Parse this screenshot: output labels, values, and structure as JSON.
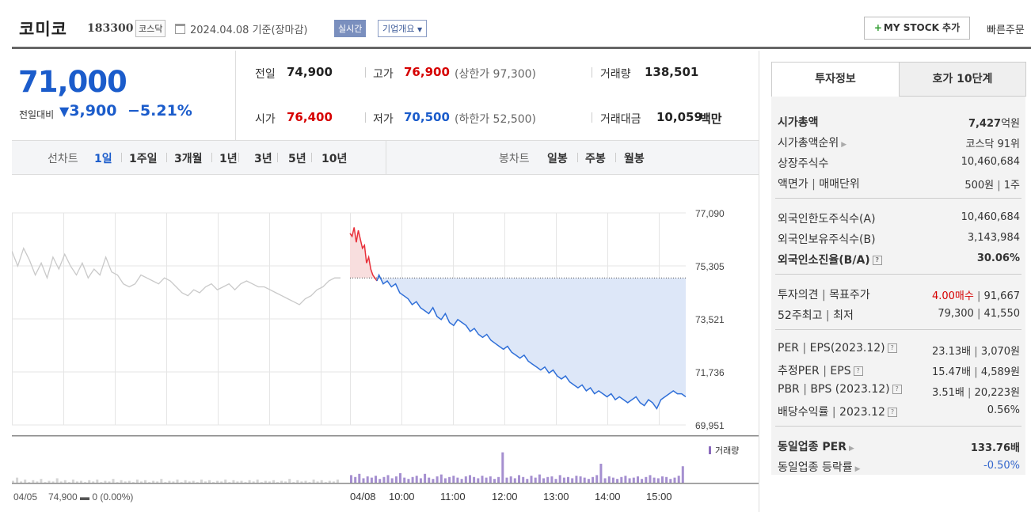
{
  "header": {
    "stock_name": "코미코",
    "stock_code": "183300",
    "market_badge": "코스닥",
    "date_text": "2024.04.08 기준(장마감)",
    "realtime_badge": "실시간",
    "overview_dropdown": "기업개요",
    "mystock_button": "MY STOCK 추가",
    "quick_order": "빠른주문"
  },
  "price": {
    "current": "71,000",
    "change_label": "전일대비",
    "change_value": "3,900",
    "change_pct": "−5.21%",
    "direction": "down"
  },
  "stats": {
    "prev_close_label": "전일",
    "prev_close": "74,900",
    "high_label": "고가",
    "high": "76,900",
    "upper_limit": "(상한가 97,300)",
    "volume_label": "거래량",
    "volume": "138,501",
    "open_label": "시가",
    "open": "76,400",
    "low_label": "저가",
    "low": "70,500",
    "lower_limit": "(하한가 52,500)",
    "amount_label": "거래대금",
    "amount": "10,059",
    "amount_unit": "백만"
  },
  "chart_nav": {
    "line_chart_label": "선차트",
    "periods": [
      "1일",
      "1주일",
      "3개월",
      "1년",
      "3년",
      "5년",
      "10년"
    ],
    "selected_period": "1일",
    "candle_chart_label": "봉차트",
    "candle_periods": [
      "일봉",
      "주봉",
      "월봉"
    ]
  },
  "chart_data": {
    "type": "line",
    "y_ticks": [
      "77,090",
      "75,305",
      "73,521",
      "71,736",
      "69,951"
    ],
    "ylim": [
      69951,
      77090
    ],
    "reference_price": 74900,
    "x_ticks": [
      "04/08",
      "10:00",
      "11:00",
      "12:00",
      "13:00",
      "14:00",
      "15:00"
    ],
    "prev_day_label": "04/05",
    "prev_day_summary": "74,900 ▬ 0 (0.00%)",
    "volume_legend": "거래량",
    "prev_day_series": [
      [
        0,
        75800
      ],
      [
        2,
        75300
      ],
      [
        4,
        75900
      ],
      [
        6,
        75500
      ],
      [
        8,
        75000
      ],
      [
        10,
        75400
      ],
      [
        12,
        74900
      ],
      [
        14,
        75600
      ],
      [
        16,
        75200
      ],
      [
        18,
        75700
      ],
      [
        20,
        75300
      ],
      [
        22,
        75000
      ],
      [
        24,
        75400
      ],
      [
        26,
        74900
      ],
      [
        28,
        75200
      ],
      [
        30,
        75000
      ],
      [
        32,
        75600
      ],
      [
        34,
        75100
      ],
      [
        36,
        75000
      ],
      [
        38,
        74700
      ],
      [
        40,
        74600
      ],
      [
        42,
        74700
      ],
      [
        44,
        75000
      ],
      [
        46,
        74900
      ],
      [
        48,
        74800
      ],
      [
        50,
        74700
      ],
      [
        52,
        74900
      ],
      [
        54,
        74800
      ],
      [
        56,
        74600
      ],
      [
        58,
        74400
      ],
      [
        60,
        74300
      ],
      [
        62,
        74500
      ],
      [
        64,
        74400
      ],
      [
        66,
        74600
      ],
      [
        68,
        74700
      ],
      [
        70,
        74500
      ],
      [
        72,
        74600
      ],
      [
        74,
        74700
      ],
      [
        76,
        74500
      ],
      [
        78,
        74700
      ],
      [
        80,
        74800
      ],
      [
        82,
        74700
      ],
      [
        84,
        74600
      ],
      [
        86,
        74600
      ],
      [
        88,
        74500
      ],
      [
        90,
        74400
      ],
      [
        92,
        74300
      ],
      [
        94,
        74200
      ],
      [
        96,
        74100
      ],
      [
        98,
        74000
      ],
      [
        100,
        74200
      ],
      [
        102,
        74300
      ],
      [
        104,
        74500
      ],
      [
        106,
        74600
      ],
      [
        108,
        74800
      ],
      [
        110,
        74900
      ],
      [
        112,
        74900
      ]
    ],
    "today_series": [
      [
        0,
        76400
      ],
      [
        0.5,
        76300
      ],
      [
        1,
        76600
      ],
      [
        1.5,
        76100
      ],
      [
        2,
        76500
      ],
      [
        2.5,
        76200
      ],
      [
        3,
        75900
      ],
      [
        3.5,
        76000
      ],
      [
        4,
        75400
      ],
      [
        4.5,
        75600
      ],
      [
        5,
        75200
      ],
      [
        5.5,
        75000
      ],
      [
        6,
        74900
      ],
      [
        6.5,
        74800
      ],
      [
        7,
        75000
      ],
      [
        8,
        74700
      ],
      [
        9,
        74800
      ],
      [
        10,
        74600
      ],
      [
        11,
        74700
      ],
      [
        12,
        74400
      ],
      [
        13,
        74300
      ],
      [
        14,
        74200
      ],
      [
        15,
        74000
      ],
      [
        16,
        74100
      ],
      [
        17,
        73900
      ],
      [
        18,
        73800
      ],
      [
        19,
        73700
      ],
      [
        20,
        73900
      ],
      [
        21,
        73600
      ],
      [
        22,
        73500
      ],
      [
        23,
        73700
      ],
      [
        24,
        73400
      ],
      [
        25,
        73300
      ],
      [
        26,
        73500
      ],
      [
        27,
        73400
      ],
      [
        28,
        73300
      ],
      [
        29,
        73100
      ],
      [
        30,
        73200
      ],
      [
        31,
        73000
      ],
      [
        32,
        72900
      ],
      [
        33,
        73000
      ],
      [
        34,
        72800
      ],
      [
        35,
        72700
      ],
      [
        36,
        72600
      ],
      [
        37,
        72500
      ],
      [
        38,
        72600
      ],
      [
        39,
        72400
      ],
      [
        40,
        72300
      ],
      [
        41,
        72200
      ],
      [
        42,
        72300
      ],
      [
        43,
        72100
      ],
      [
        44,
        72000
      ],
      [
        45,
        71900
      ],
      [
        46,
        71800
      ],
      [
        47,
        71900
      ],
      [
        48,
        71700
      ],
      [
        49,
        71800
      ],
      [
        50,
        71600
      ],
      [
        51,
        71500
      ],
      [
        52,
        71600
      ],
      [
        53,
        71400
      ],
      [
        54,
        71300
      ],
      [
        55,
        71200
      ],
      [
        56,
        71300
      ],
      [
        57,
        71100
      ],
      [
        58,
        71200
      ],
      [
        59,
        71000
      ],
      [
        60,
        71100
      ],
      [
        61,
        71000
      ],
      [
        62,
        70900
      ],
      [
        63,
        71000
      ],
      [
        64,
        70800
      ],
      [
        65,
        70900
      ],
      [
        66,
        70800
      ],
      [
        67,
        70700
      ],
      [
        68,
        70800
      ],
      [
        69,
        70900
      ],
      [
        70,
        70700
      ],
      [
        71,
        70600
      ],
      [
        72,
        70800
      ],
      [
        73,
        70700
      ],
      [
        74,
        70500
      ],
      [
        75,
        70800
      ],
      [
        76,
        70900
      ],
      [
        77,
        71000
      ],
      [
        78,
        71100
      ],
      [
        79,
        71000
      ],
      [
        80,
        71000
      ],
      [
        81,
        70900
      ]
    ],
    "volume_series": [
      3,
      8,
      2,
      5,
      1,
      4,
      2,
      6,
      1,
      3,
      2,
      7,
      2,
      4,
      1,
      5,
      2,
      3,
      1,
      4,
      2,
      5,
      1,
      3,
      2,
      6,
      1,
      4,
      2,
      3,
      1,
      5,
      2,
      4,
      1,
      3,
      2,
      6,
      1,
      3,
      2,
      5,
      1,
      4,
      2,
      3,
      1,
      5,
      2,
      4,
      1,
      3,
      2,
      5,
      1,
      4,
      2,
      3,
      1,
      4,
      2,
      5,
      1,
      3,
      2,
      4,
      1,
      3,
      2,
      6,
      1,
      4,
      2,
      3,
      1,
      5,
      2,
      4,
      1,
      3,
      2,
      5
    ],
    "volume_today": [
      12,
      9,
      14,
      7,
      10,
      8,
      11,
      6,
      9,
      12,
      7,
      10,
      15,
      8,
      6,
      9,
      11,
      7,
      14,
      8,
      6,
      10,
      13,
      7,
      9,
      11,
      8,
      6,
      10,
      12,
      9,
      7,
      11,
      8,
      10,
      6,
      9,
      48,
      8,
      10,
      7,
      12,
      9,
      6,
      11,
      8,
      13,
      7,
      9,
      10,
      6,
      12,
      8,
      9,
      7,
      11,
      10,
      8,
      6,
      9,
      12,
      30,
      7,
      10,
      8,
      6,
      9,
      11,
      7,
      8,
      10,
      6,
      9,
      12,
      8,
      7,
      10,
      9,
      6,
      8,
      11,
      26
    ]
  },
  "side": {
    "tab_invest": "투자정보",
    "tab_orderbook": "호가 10단계",
    "rows1": [
      {
        "k": "시가총액",
        "v": "7,427",
        "u": "억원"
      },
      {
        "k": "시가총액순위",
        "v": "코스닥 91위"
      },
      {
        "k": "상장주식수",
        "v": "10,460,684"
      },
      {
        "k": "액면가",
        "k2": "매매단위",
        "v": "500원",
        "v2": "1주"
      }
    ],
    "rows2": [
      {
        "k": "외국인한도주식수(A)",
        "v": "10,460,684"
      },
      {
        "k": "외국인보유주식수(B)",
        "v": "3,143,984"
      },
      {
        "k": "외국인소진율(B/A)",
        "v": "30.06%"
      }
    ],
    "rows3": [
      {
        "k": "투자의견",
        "k2": "목표주가",
        "v": "4.00매수",
        "v2": "91,667"
      },
      {
        "k": "52주최고",
        "k2": "최저",
        "v": "79,300",
        "v2": "41,550"
      }
    ],
    "rows4": [
      {
        "k": "PER",
        "k2": "EPS(2023.12)",
        "v": "23.13배",
        "v2": "3,070원"
      },
      {
        "k": "추정PER",
        "k2": "EPS",
        "v": "15.47배",
        "v2": "4,589원"
      },
      {
        "k": "PBR",
        "k2": "BPS (2023.12)",
        "v": "3.51배",
        "v2": "20,223원"
      },
      {
        "k": "배당수익률",
        "k2": "2023.12",
        "v": "0.56%"
      }
    ],
    "rows5": [
      {
        "k": "동일업종 PER",
        "v": "133.76배"
      },
      {
        "k": "동일업종 등락률",
        "v": "-0.50%"
      }
    ],
    "colors": {
      "up": "#d60000",
      "down": "#1b5ccb",
      "blue_link": "#3366cc"
    }
  }
}
